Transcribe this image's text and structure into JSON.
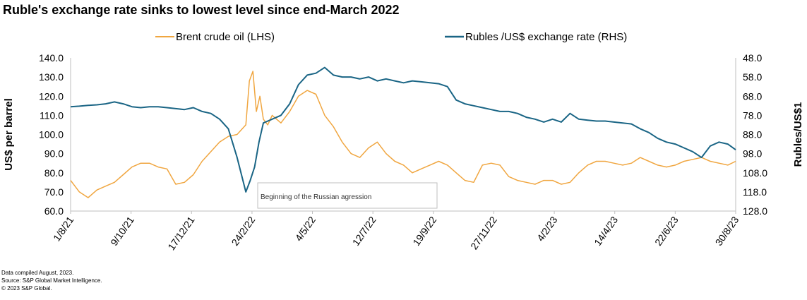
{
  "chart_data": {
    "type": "line",
    "title": "Ruble's exchange rate sinks to lowest level since end-March 2022",
    "x_tick_labels": [
      "1/8/21",
      "9/10/21",
      "17/12/21",
      "24/2/22",
      "4/5/22",
      "12/7/22",
      "19/9/22",
      "27/11/22",
      "4/2/23",
      "14/4/23",
      "22/6/23",
      "30/8/23"
    ],
    "x_range": [
      "1/8/21",
      "30/8/23"
    ],
    "ylabel_left": "US$ per barrel",
    "ylabel_right": "Rubles/US$1",
    "ylim_left": [
      60,
      140
    ],
    "yticks_left": [
      "60.0",
      "70.0",
      "80.0",
      "90.0",
      "100.0",
      "110.0",
      "120.0",
      "130.0",
      "140.0"
    ],
    "ylim_right": [
      128,
      48
    ],
    "yticks_right": [
      "48.0",
      "58.0",
      "68.0",
      "78.0",
      "88.0",
      "98.0",
      "108.0",
      "118.0",
      "128.0"
    ],
    "right_axis_inverted": true,
    "series": [
      {
        "name": "Brent crude oil (LHS)",
        "axis": "left",
        "color": "#f0a640",
        "x_day_offsets": [
          0,
          10,
          20,
          30,
          40,
          50,
          60,
          70,
          80,
          90,
          100,
          110,
          120,
          130,
          140,
          150,
          160,
          170,
          180,
          190,
          200,
          204,
          208,
          212,
          216,
          220,
          225,
          230,
          240,
          250,
          260,
          270,
          280,
          290,
          300,
          310,
          320,
          330,
          340,
          350,
          360,
          370,
          380,
          390,
          400,
          410,
          420,
          430,
          440,
          450,
          460,
          470,
          480,
          490,
          500,
          510,
          520,
          530,
          540,
          550,
          560,
          570,
          580,
          590,
          600,
          610,
          620,
          630,
          640,
          650,
          660,
          670,
          680,
          690,
          700,
          710,
          720,
          730,
          740,
          750,
          759
        ],
        "values": [
          76,
          70,
          67,
          71,
          73,
          75,
          79,
          83,
          85,
          85,
          83,
          82,
          74,
          75,
          79,
          86,
          91,
          96,
          99,
          100,
          105,
          128,
          133,
          112,
          120,
          108,
          105,
          110,
          106,
          112,
          120,
          123,
          121,
          110,
          104,
          96,
          90,
          88,
          93,
          96,
          90,
          86,
          84,
          80,
          82,
          84,
          86,
          84,
          80,
          76,
          75,
          84,
          85,
          84,
          78,
          76,
          75,
          74,
          76,
          76,
          74,
          75,
          80,
          84,
          86,
          86,
          85,
          84,
          85,
          88,
          86,
          84,
          83,
          84,
          86,
          87,
          88,
          86,
          85,
          84,
          86
        ]
      },
      {
        "name": "Rubles /US$ exchange rate (RHS)",
        "axis": "right",
        "color": "#1a6585",
        "x_day_offsets": [
          0,
          10,
          20,
          30,
          40,
          50,
          60,
          70,
          80,
          90,
          100,
          110,
          120,
          130,
          140,
          150,
          160,
          170,
          180,
          190,
          200,
          205,
          210,
          215,
          220,
          230,
          240,
          250,
          260,
          270,
          280,
          290,
          300,
          310,
          320,
          330,
          340,
          350,
          360,
          370,
          380,
          390,
          400,
          410,
          420,
          430,
          440,
          450,
          460,
          470,
          480,
          490,
          500,
          510,
          520,
          530,
          540,
          550,
          560,
          570,
          580,
          590,
          600,
          610,
          620,
          630,
          640,
          650,
          660,
          670,
          680,
          690,
          700,
          710,
          720,
          730,
          740,
          750,
          759
        ],
        "values": [
          73.5,
          73.2,
          72.8,
          72.5,
          72.0,
          71.0,
          72.0,
          73.5,
          74.0,
          73.5,
          73.5,
          74.0,
          74.5,
          75.0,
          74.0,
          76.0,
          77.0,
          80.0,
          85.0,
          100.0,
          118.0,
          112.0,
          105.0,
          92.0,
          82.0,
          80.0,
          78.0,
          72.0,
          62.0,
          57.0,
          56.0,
          53.0,
          57.0,
          58.0,
          58.0,
          59.0,
          58.0,
          60.0,
          59.0,
          60.0,
          61.0,
          60.0,
          60.5,
          61.0,
          61.5,
          63.0,
          70.0,
          72.0,
          73.0,
          74.0,
          75.0,
          76.0,
          76.0,
          77.0,
          79.0,
          80.0,
          81.5,
          80.0,
          81.5,
          77.0,
          80.0,
          80.5,
          81.0,
          81.0,
          81.5,
          82.0,
          82.5,
          85.0,
          87.0,
          90.0,
          92.0,
          93.0,
          95.0,
          97.0,
          100.0,
          94.0,
          92.0,
          93.0,
          96.0
        ]
      }
    ],
    "annotation": "Beginning of the Russian agression"
  },
  "footnotes": [
    "Data compiled August, 2023.",
    "Source: S&P Global Market Intelligence.",
    "© 2023 S&P Global."
  ]
}
